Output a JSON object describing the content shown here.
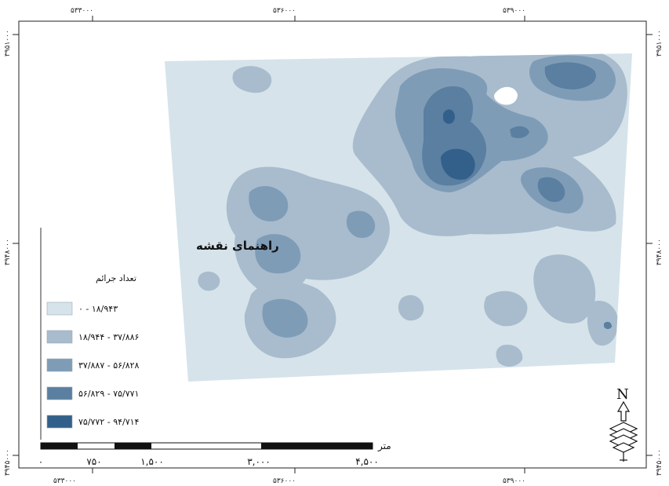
{
  "map": {
    "top_ticks": [
      "۵۳۳۰۰۰",
      "۵۳۶۰۰۰",
      "۵۳۹۰۰۰"
    ],
    "bottom_ticks": [
      "۵۳۳۰۰۰",
      "۵۳۶۰۰۰",
      "۵۳۹۰۰۰"
    ],
    "left_ticks": [
      "۳۹۵۱۰۰۰",
      "۳۹۴۸۰۰۰",
      "۳۹۴۵۰۰۰"
    ],
    "right_ticks": [
      "۳۹۵۱۰۰۰",
      "۳۹۴۸۰۰۰",
      "۳۹۴۵۰۰۰"
    ]
  },
  "legend": {
    "title": "راهنمای نقشه",
    "subtitle": "تعداد جرائم",
    "classes": [
      {
        "label": "۰ - ۱۸/۹۴۳",
        "color": "#d6e3ea"
      },
      {
        "label": "۱۸/۹۴۴ - ۳۷/۸۸۶",
        "color": "#a8bccd"
      },
      {
        "label": "۳۷/۸۸۷ - ۵۶/۸۲۸",
        "color": "#7f9cb7"
      },
      {
        "label": "۵۶/۸۲۹ - ۷۵/۷۷۱",
        "color": "#5a7fa1"
      },
      {
        "label": "۷۵/۷۷۲ - ۹۴/۷۱۴",
        "color": "#33608a"
      }
    ]
  },
  "scale_bar": {
    "unit": "متر",
    "labels": [
      "۰",
      "۷۵۰",
      "۱,۵۰۰",
      "۳,۰۰۰",
      "۴,۵۰۰"
    ]
  },
  "north_arrow": {
    "letter": "N",
    "icon": "north-arrow-icon"
  }
}
